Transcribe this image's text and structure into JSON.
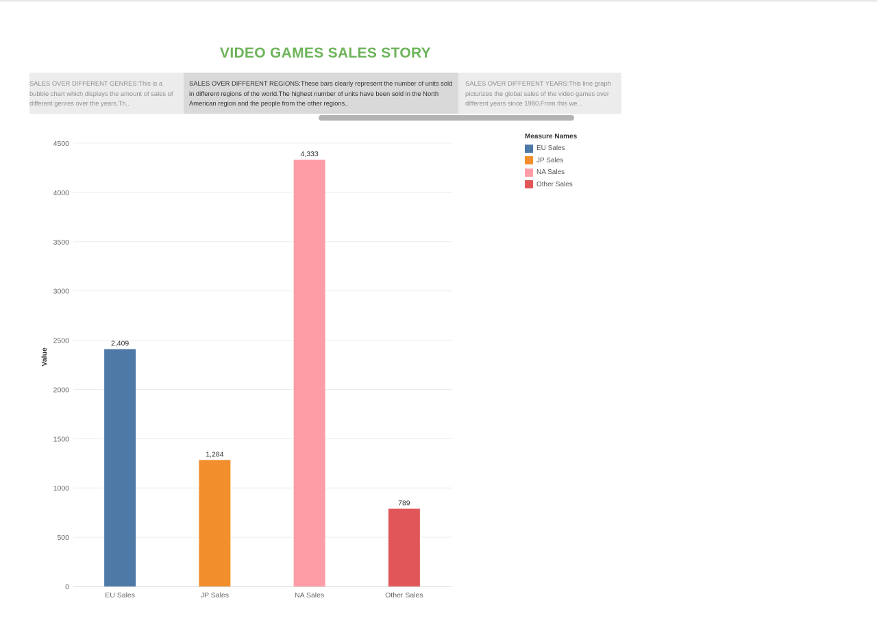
{
  "story": {
    "title": "VIDEO GAMES SALES STORY",
    "title_color": "#6db35a",
    "points": [
      {
        "text": "SALES OVER DIFFERENT GENRES:This is a bubble chart which displays the amount of sales of different genres over the years.Th.."
      },
      {
        "text": "SALES OVER DIFFERENT REGIONS:These bars clearly represent the number of units sold in different regions of the world.The highest number of units have been sold in the North American region and the people from the other regions.."
      },
      {
        "text": "SALES OVER DIFFERENT YEARS:This line graph picturizes the global sales of the video games over different years since 1980.From this we .."
      }
    ],
    "active_point": 1
  },
  "chart_data": {
    "type": "bar",
    "title": "",
    "xlabel": "",
    "ylabel": "Value",
    "categories": [
      "EU Sales",
      "JP Sales",
      "NA Sales",
      "Other Sales"
    ],
    "values": [
      2409,
      1284,
      4333,
      789
    ],
    "value_labels": [
      "2,409",
      "1,284",
      "4,333",
      "789"
    ],
    "colors": [
      "#4e79a7",
      "#f28e2b",
      "#ff9da7",
      "#e15759"
    ],
    "ylim": [
      0,
      4500
    ],
    "yticks": [
      0,
      500,
      1000,
      1500,
      2000,
      2500,
      3000,
      3500,
      4000,
      4500
    ],
    "grid": true,
    "legend_position": "top-right",
    "legend": {
      "title": "Measure Names",
      "items": [
        {
          "label": "EU Sales",
          "color": "#4e79a7"
        },
        {
          "label": "JP Sales",
          "color": "#f28e2b"
        },
        {
          "label": "NA Sales",
          "color": "#ff9da7"
        },
        {
          "label": "Other Sales",
          "color": "#e15759"
        }
      ]
    }
  }
}
